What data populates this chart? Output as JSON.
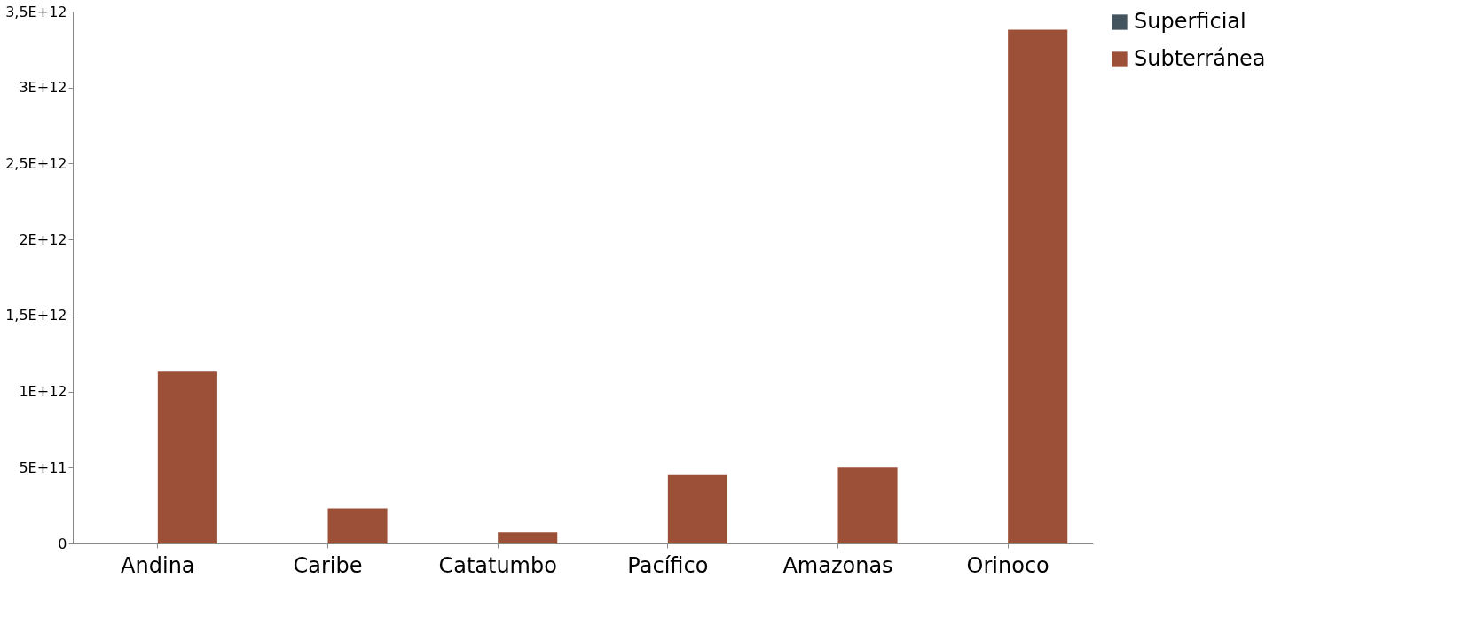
{
  "chart_data": {
    "type": "bar",
    "categories": [
      "Andina",
      "Caribe",
      "Catatumbo",
      "Pacífico",
      "Amazonas",
      "Orinoco"
    ],
    "series": [
      {
        "name": "Superficial",
        "color": "#44545e",
        "values": [
          0,
          0,
          0,
          0,
          0,
          0
        ]
      },
      {
        "name": "Subterránea",
        "color": "#9b5037",
        "values": [
          1130000000000.0,
          230000000000.0,
          75000000000.0,
          450000000000.0,
          500000000000.0,
          3380000000000.0
        ]
      }
    ],
    "ylim": [
      0,
      3500000000000.0
    ],
    "yticks": [
      0,
      {
        "value": 500000000000.0,
        "label": "5E+11"
      },
      {
        "value": 1000000000000.0,
        "label": "1E+12"
      },
      {
        "value": 1500000000000.0,
        "label": "1,5E+12"
      },
      {
        "value": 2000000000000.0,
        "label": "2E+12"
      },
      {
        "value": 2500000000000.0,
        "label": "2,5E+12"
      },
      {
        "value": 3000000000000.0,
        "label": "3E+12"
      },
      {
        "value": 3500000000000.0,
        "label": "3,5E+12"
      }
    ],
    "grid": false,
    "legend": "right"
  }
}
